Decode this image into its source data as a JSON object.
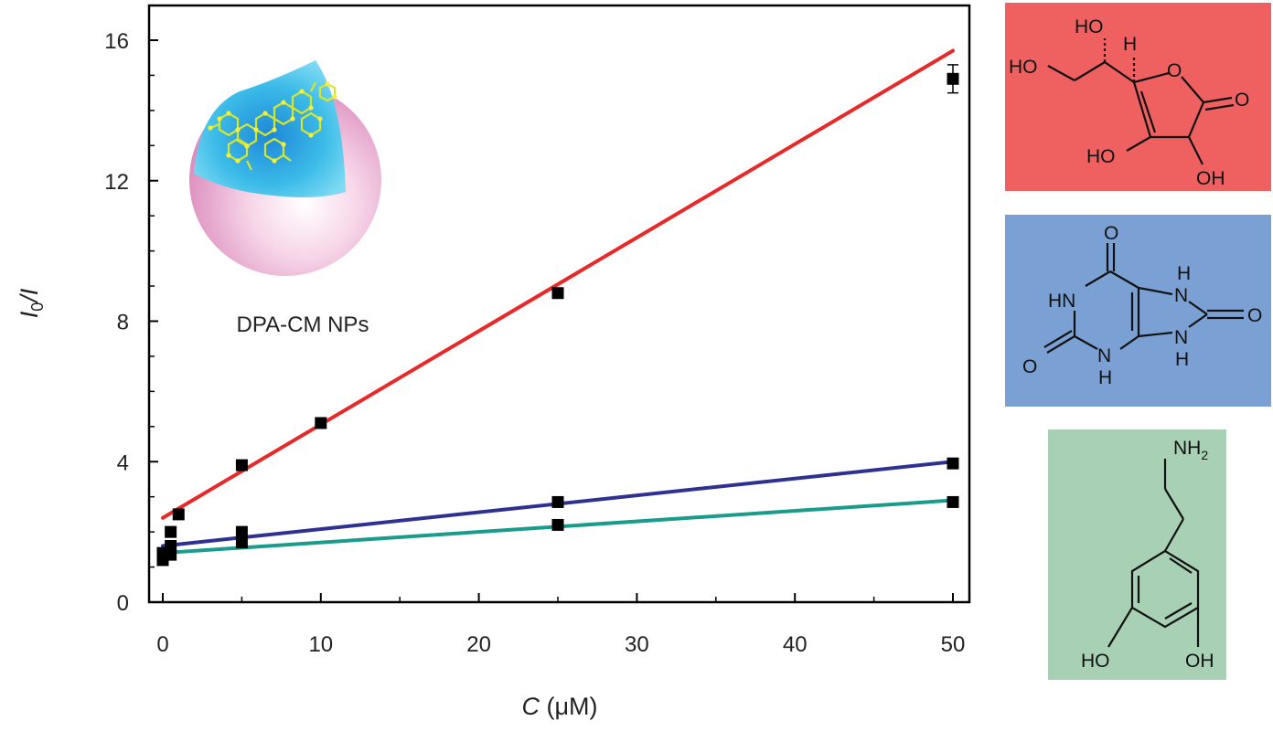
{
  "chart_data": {
    "type": "scatter",
    "xlabel": {
      "var": "C",
      "unit": " (μM)"
    },
    "ylabel": {
      "pre": "I",
      "sub": "0",
      "post": "/I"
    },
    "xlim": [
      -1,
      51
    ],
    "ylim": [
      0,
      17
    ],
    "xticks": [
      0,
      10,
      20,
      30,
      40,
      50
    ],
    "yticks": [
      0,
      4,
      8,
      12,
      16
    ],
    "grid": false,
    "series": [
      {
        "color": "#e8292a",
        "x": [
          0,
          0.5,
          1,
          5,
          10,
          25,
          50
        ],
        "y": [
          1.2,
          2.0,
          2.5,
          3.9,
          5.1,
          8.8,
          14.9
        ],
        "err": [
          0,
          0,
          0,
          0,
          0,
          0,
          0.4
        ],
        "fit": [
          2.4,
          15.7
        ]
      },
      {
        "color": "#2e3192",
        "x": [
          0,
          0.5,
          5,
          25,
          50
        ],
        "y": [
          1.4,
          1.6,
          2.0,
          2.85,
          3.95
        ],
        "err": [
          0,
          0,
          0,
          0,
          0
        ],
        "fit": [
          1.6,
          4.0
        ]
      },
      {
        "color": "#1a9c8c",
        "x": [
          0,
          0.5,
          5,
          25,
          50
        ],
        "y": [
          1.2,
          1.35,
          1.7,
          2.2,
          2.85
        ],
        "err": [
          0,
          0,
          0,
          0,
          0
        ],
        "fit": [
          1.4,
          2.9
        ]
      }
    ],
    "inset": {
      "label": "DPA-CM NPs"
    }
  },
  "structures": {
    "ascorbic_acid": {
      "color": "#ee6160",
      "labels": {
        "ho_top": "HO",
        "h": "H",
        "ho_left": "HO",
        "o_ring": "O",
        "o_carbonyl": "O",
        "ho_bottom": "HO",
        "oh_bottom": "OH"
      }
    },
    "uric_acid": {
      "color": "#7ba1d4",
      "labels": {
        "o_top": "O",
        "hn": "HN",
        "h_top": "H",
        "n_top": "N",
        "o_right": "O",
        "o_left": "O",
        "n_left": "N",
        "h_left": "H",
        "n_right": "N",
        "h_right": "H"
      }
    },
    "dopamine": {
      "color": "#a8d0b4",
      "labels": {
        "nh2": "NH",
        "nh2_sub": "2",
        "ho": "HO",
        "oh": "OH"
      }
    }
  }
}
